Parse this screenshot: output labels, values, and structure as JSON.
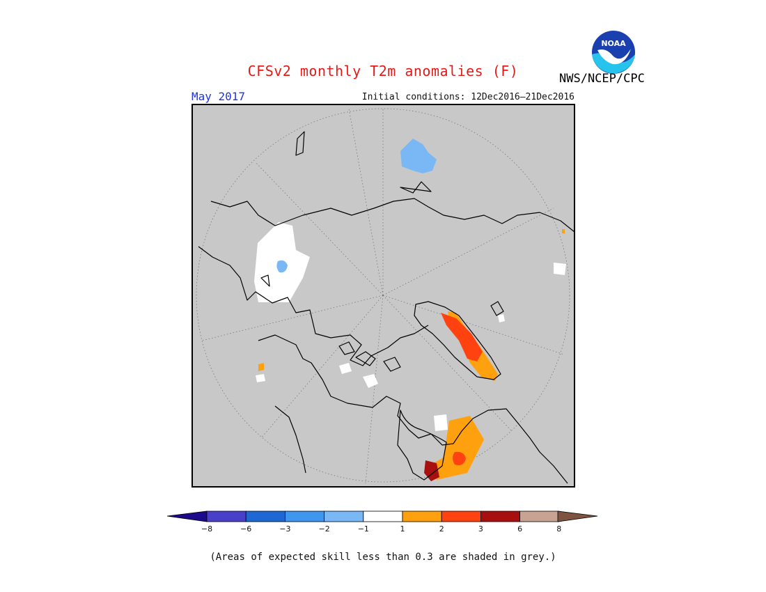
{
  "title": "CFSv2 monthly T2m anomalies (F)",
  "agency": "NWS/NCEP/CPC",
  "logo_text": "NOAA",
  "target_month": "May 2017",
  "initial_conditions": "Initial conditions: 12Dec2016–21Dec2016",
  "footnote": "(Areas of expected skill less than 0.3 are shaded in grey.)",
  "colors": {
    "title": "#e21a1a",
    "month": "#2233dd",
    "land_mask": "#c8c8c8",
    "coastline": "#000000"
  },
  "colorbar": {
    "ticks": [
      "−8",
      "−6",
      "−3",
      "−2",
      "−1",
      "1",
      "2",
      "3",
      "6",
      "8"
    ],
    "colors": [
      "#1d0a8a",
      "#4a3fc9",
      "#1f67d2",
      "#3f96ee",
      "#7ab8f5",
      "#ffffff",
      "#ffa10f",
      "#ff4210",
      "#a80f0f",
      "#c8a393",
      "#7e5340"
    ]
  }
}
